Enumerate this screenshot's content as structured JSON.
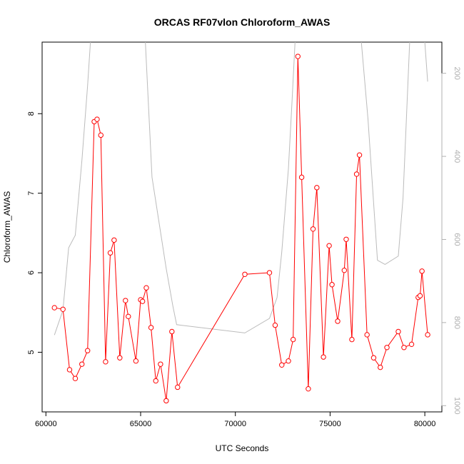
{
  "chart_data": {
    "type": "line",
    "title": "ORCAS RF07vlon Chloroform_AWAS",
    "xlabel": "UTC Seconds",
    "ylabel": "Chloroform_AWAS",
    "xlim": [
      59800,
      80900
    ],
    "ylim": [
      4.25,
      8.9
    ],
    "x_ticks": [
      60000,
      65000,
      70000,
      75000,
      80000
    ],
    "y_ticks": [
      5,
      6,
      7,
      8
    ],
    "y2_ticks": [
      200,
      400,
      600,
      800,
      1000
    ],
    "y2lim": [
      1015,
      125
    ],
    "grid": false,
    "legend": "none",
    "series": [
      {
        "color": "#ff0000",
        "marker": "open-circle",
        "points": [
          [
            60450,
            5.56
          ],
          [
            60900,
            5.54
          ],
          [
            61250,
            4.78
          ],
          [
            61550,
            4.67
          ],
          [
            61900,
            4.85
          ],
          [
            62200,
            5.02
          ],
          [
            62550,
            7.9
          ],
          [
            62700,
            7.93
          ],
          [
            62900,
            7.73
          ],
          [
            63150,
            4.88
          ],
          [
            63400,
            6.25
          ],
          [
            63600,
            6.41
          ],
          [
            63900,
            4.93
          ],
          [
            64200,
            5.65
          ],
          [
            64350,
            5.45
          ],
          [
            64750,
            4.89
          ],
          [
            65000,
            5.66
          ],
          [
            65100,
            5.64
          ],
          [
            65300,
            5.81
          ],
          [
            65550,
            5.31
          ],
          [
            65800,
            4.64
          ],
          [
            66050,
            4.85
          ],
          [
            66350,
            4.39
          ],
          [
            66650,
            5.26
          ],
          [
            66950,
            4.56
          ],
          [
            70500,
            5.98
          ],
          [
            71800,
            6.0
          ],
          [
            72100,
            5.34
          ],
          [
            72450,
            4.84
          ],
          [
            72800,
            4.89
          ],
          [
            73050,
            5.16
          ],
          [
            73300,
            8.72
          ],
          [
            73500,
            7.2
          ],
          [
            73850,
            4.54
          ],
          [
            74100,
            6.55
          ],
          [
            74300,
            7.07
          ],
          [
            74650,
            4.94
          ],
          [
            74950,
            6.34
          ],
          [
            75100,
            5.85
          ],
          [
            75400,
            5.39
          ],
          [
            75750,
            6.03
          ],
          [
            75850,
            6.42
          ],
          [
            76150,
            5.16
          ],
          [
            76400,
            7.24
          ],
          [
            76550,
            7.48
          ],
          [
            76950,
            5.22
          ],
          [
            77300,
            4.93
          ],
          [
            77650,
            4.81
          ],
          [
            78000,
            5.06
          ],
          [
            78600,
            5.26
          ],
          [
            78900,
            5.06
          ],
          [
            79300,
            5.1
          ],
          [
            79650,
            5.69
          ],
          [
            79750,
            5.71
          ],
          [
            79850,
            6.02
          ],
          [
            80150,
            5.22
          ]
        ]
      },
      {
        "color": "#bbbbbb",
        "marker": "none",
        "axis": "right",
        "points": [
          [
            60450,
            830
          ],
          [
            60900,
            770
          ],
          [
            61200,
            620
          ],
          [
            61550,
            590
          ],
          [
            61900,
            410
          ],
          [
            62200,
            230
          ],
          [
            62350,
            125
          ],
          [
            63000,
            80
          ],
          [
            64000,
            60
          ],
          [
            65000,
            100
          ],
          [
            65250,
            125
          ],
          [
            65600,
            450
          ],
          [
            66350,
            670
          ],
          [
            66700,
            760
          ],
          [
            66900,
            805
          ],
          [
            70500,
            825
          ],
          [
            71800,
            790
          ],
          [
            72200,
            740
          ],
          [
            72450,
            630
          ],
          [
            72800,
            430
          ],
          [
            73000,
            260
          ],
          [
            73150,
            125
          ],
          [
            73800,
            80
          ],
          [
            75000,
            70
          ],
          [
            76000,
            80
          ],
          [
            76650,
            125
          ],
          [
            77000,
            310
          ],
          [
            77500,
            650
          ],
          [
            77900,
            660
          ],
          [
            78600,
            640
          ],
          [
            78850,
            500
          ],
          [
            79200,
            125
          ],
          [
            79650,
            90
          ],
          [
            80000,
            125
          ],
          [
            80150,
            220
          ]
        ]
      }
    ]
  }
}
